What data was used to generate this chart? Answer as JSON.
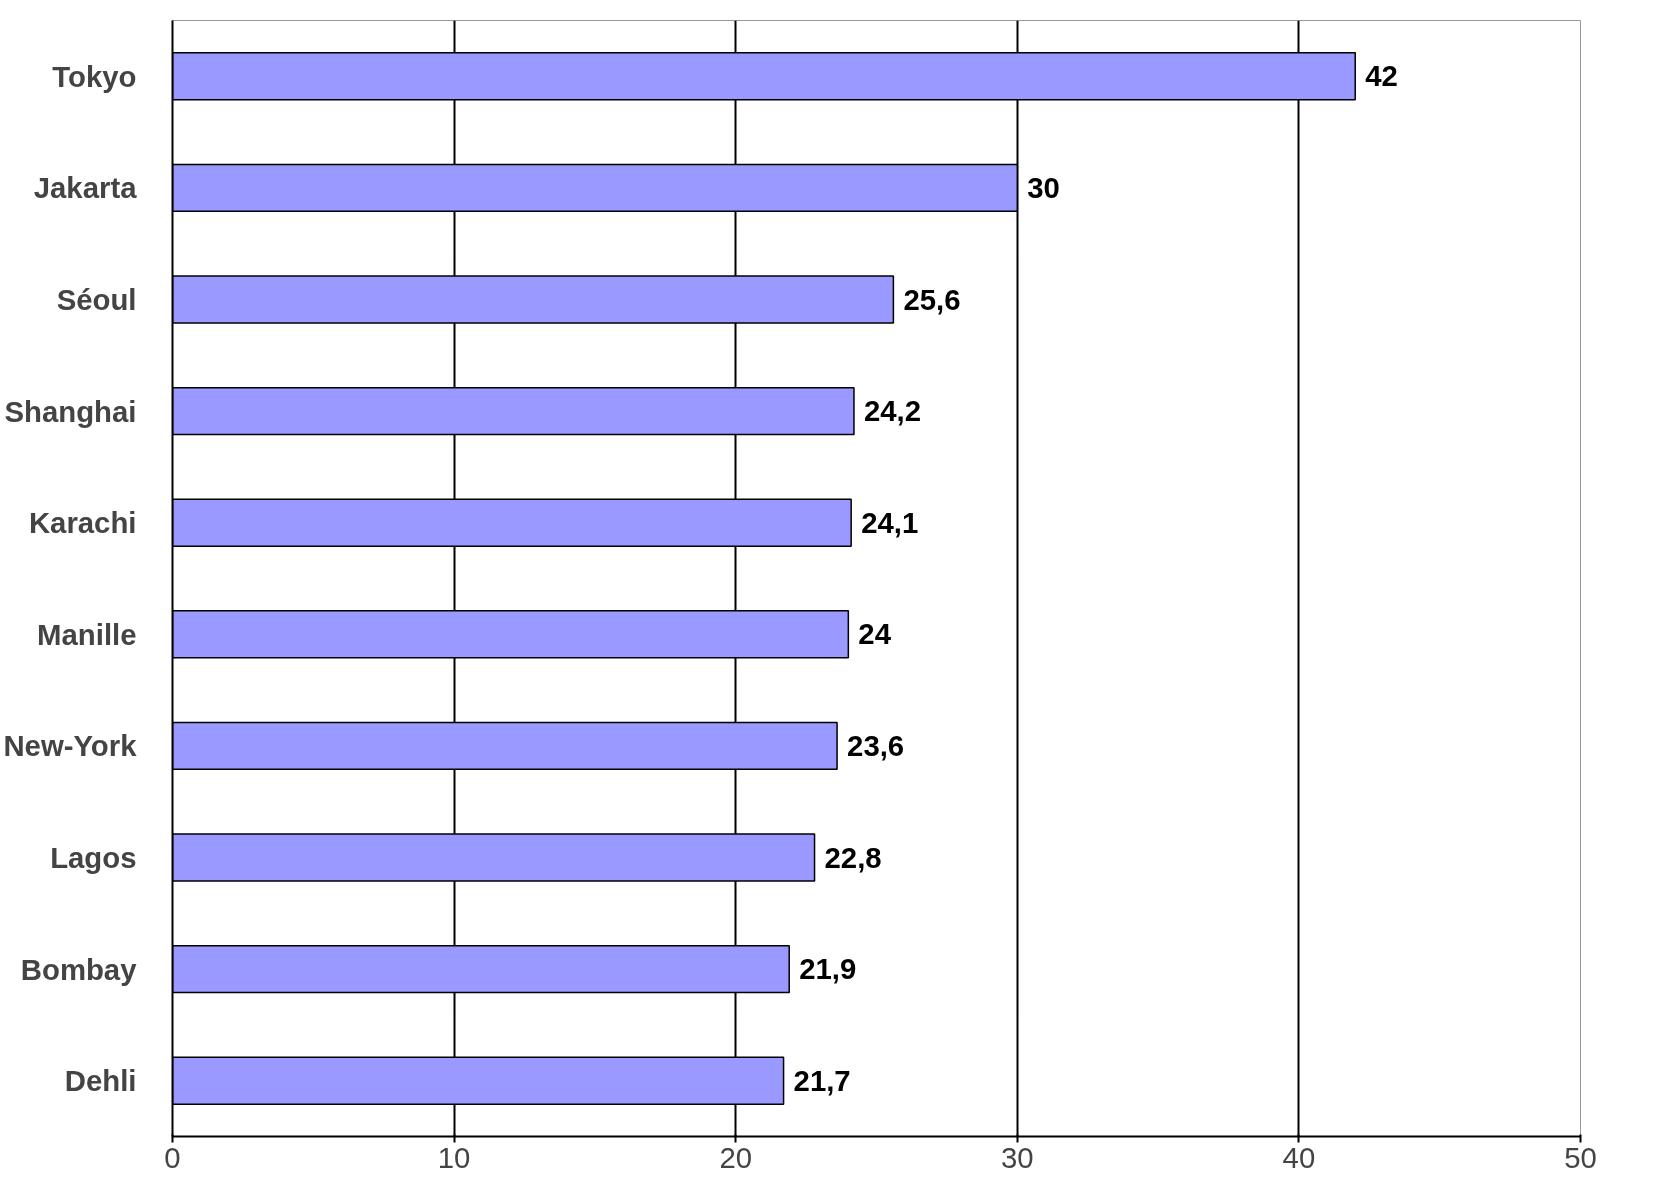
{
  "chart_data": {
    "type": "bar",
    "orientation": "horizontal",
    "categories": [
      "Tokyo",
      "Jakarta",
      "Séoul",
      "Shanghai",
      "Karachi",
      "Manille",
      "New-York",
      "Lagos",
      "Bombay",
      "Dehli"
    ],
    "values": [
      42,
      30,
      25.6,
      24.2,
      24.1,
      24,
      23.6,
      22.8,
      21.9,
      21.7
    ],
    "value_labels": [
      "42",
      "30",
      "25,6",
      "24,2",
      "24,1",
      "24",
      "23,6",
      "22,8",
      "21,9",
      "21,7"
    ],
    "color": "#9999ff",
    "xlim": [
      0,
      50
    ],
    "xticks": [
      0,
      10,
      20,
      30,
      40,
      50
    ],
    "grid": "x"
  }
}
